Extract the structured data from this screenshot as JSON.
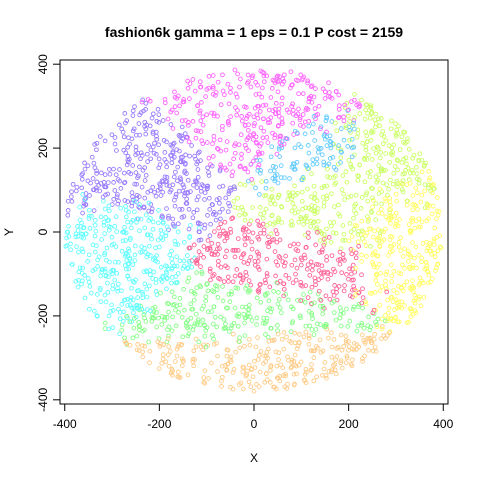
{
  "chart_data": {
    "type": "scatter",
    "title": "fashion6k gamma = 1 eps = 0.1 P cost = 2159",
    "xlabel": "X",
    "ylabel": "Y",
    "xlim": [
      -410,
      410
    ],
    "ylim": [
      -410,
      410
    ],
    "x_ticks": [
      -400,
      -200,
      0,
      200,
      400
    ],
    "y_ticks": [
      -400,
      -200,
      0,
      200,
      400
    ],
    "x_tick_labels": [
      "-400",
      "-200",
      "0",
      "200",
      "400"
    ],
    "y_tick_labels": [
      "-400",
      "-200",
      "0",
      "200",
      "400"
    ],
    "grid": false,
    "legend": "none",
    "point_shape": "open-circle",
    "n_points_approx": 6000,
    "cloud_extent": {
      "x": [
        -400,
        400
      ],
      "y": [
        -380,
        390
      ]
    },
    "clusters": [
      {
        "color": "#ff66ff",
        "center": [
          0,
          260
        ],
        "spread": [
          110,
          70
        ],
        "share": 0.16
      },
      {
        "color": "#9a7dff",
        "center": [
          -230,
          130
        ],
        "spread": [
          90,
          90
        ],
        "share": 0.11
      },
      {
        "color": "#66ffff",
        "center": [
          -260,
          -40
        ],
        "spread": [
          70,
          110
        ],
        "share": 0.1
      },
      {
        "color": "#ccff66",
        "center": [
          200,
          80
        ],
        "spread": [
          110,
          110
        ],
        "share": 0.12
      },
      {
        "color": "#ffff66",
        "center": [
          280,
          0
        ],
        "spread": [
          80,
          100
        ],
        "share": 0.08
      },
      {
        "color": "#ff6699",
        "center": [
          100,
          -80
        ],
        "spread": [
          130,
          60
        ],
        "share": 0.12
      },
      {
        "color": "#88ff88",
        "center": [
          -40,
          -190
        ],
        "spread": [
          140,
          60
        ],
        "share": 0.12
      },
      {
        "color": "#ffcc88",
        "center": [
          0,
          -300
        ],
        "spread": [
          150,
          50
        ],
        "share": 0.11
      },
      {
        "color": "#66ccff",
        "center": [
          120,
          180
        ],
        "spread": [
          80,
          60
        ],
        "share": 0.08
      }
    ]
  }
}
